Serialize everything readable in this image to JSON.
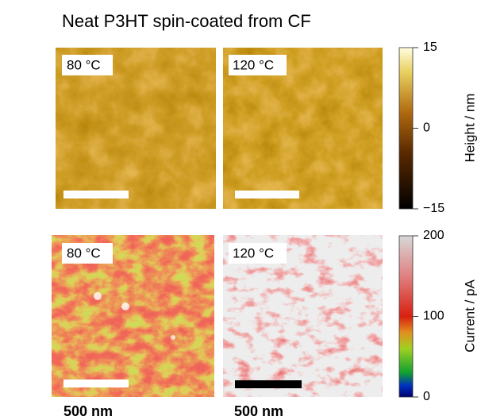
{
  "title": "Neat P3HT spin-coated from CF",
  "panels": [
    {
      "label": "80 °C"
    },
    {
      "label": "120 °C"
    },
    {
      "label": "80 °C"
    },
    {
      "label": "120 °C"
    }
  ],
  "colorbars": [
    {
      "label": "Height / nm",
      "lim": [
        -15,
        15
      ],
      "ticks": [
        {
          "value": -15,
          "label": "−15"
        },
        0,
        15
      ]
    },
    {
      "label": "Current / pA",
      "lim": [
        0,
        200
      ],
      "ticks": [
        0,
        100,
        200
      ]
    }
  ],
  "scalebar_labels": [
    "500 nm",
    "500 nm"
  ]
}
